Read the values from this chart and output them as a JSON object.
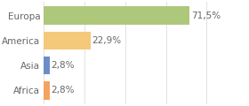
{
  "categories": [
    "Africa",
    "Asia",
    "America",
    "Europa"
  ],
  "values": [
    2.8,
    2.8,
    22.9,
    71.5
  ],
  "bar_colors": [
    "#f4a460",
    "#6b8ec7",
    "#f5c97a",
    "#adc87a"
  ],
  "labels": [
    "2,8%",
    "2,8%",
    "22,9%",
    "71,5%"
  ],
  "xlim": [
    0,
    100
  ],
  "background_color": "#ffffff",
  "text_color": "#666666",
  "label_fontsize": 7.5,
  "tick_fontsize": 7.5,
  "bar_height": 0.72,
  "figsize": [
    2.8,
    1.2
  ],
  "dpi": 100,
  "grid_color": "#dddddd",
  "grid_linewidth": 0.6
}
